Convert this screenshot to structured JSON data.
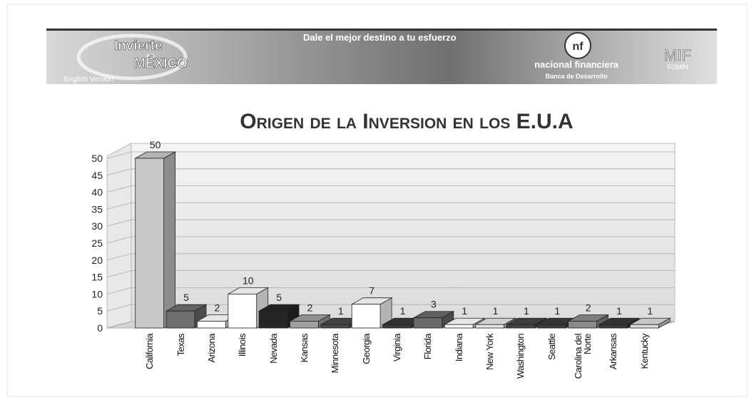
{
  "banner": {
    "brand_line1": "Invierte",
    "brand_line2": "en",
    "brand_line3": "MÉXICO",
    "version_link": "English Version",
    "slogan": "Dale el mejor destino a tu esfuerzo",
    "bank_name": "nacional financiera",
    "bank_sub": "Banca de Desarrollo",
    "partner_line1": "MIF",
    "partner_line2": "FOMIN"
  },
  "chart_data": {
    "type": "bar3d",
    "title": "Origen de la Inversion en los E.U.A",
    "categories": [
      "California",
      "Texas",
      "Arizona",
      "Illinois",
      "Nevada",
      "Kansas",
      "Minnesota",
      "Georgia",
      "Virginia",
      "Florida",
      "Indiana",
      "New York",
      "Washington",
      "Seattle",
      "Carolina del Norte",
      "Arkansas",
      "Kentucky"
    ],
    "values": [
      50,
      5,
      2,
      10,
      5,
      2,
      1,
      7,
      1,
      3,
      1,
      1,
      1,
      1,
      2,
      1,
      1
    ],
    "colors": [
      "#c8c8c8",
      "#6e6e6e",
      "#ffffff",
      "#ffffff",
      "#262626",
      "#a0a0a0",
      "#4a4a4a",
      "#ffffff",
      "#3a3a3a",
      "#6a6a6a",
      "#ffffff",
      "#e6e6e6",
      "#444444",
      "#3c3c3c",
      "#8a8a8a",
      "#3a3a3a",
      "#dcdcdc"
    ],
    "ylim": [
      0,
      50
    ],
    "yticks": [
      0,
      5,
      10,
      15,
      20,
      25,
      30,
      35,
      40,
      45,
      50
    ],
    "grid": true
  }
}
